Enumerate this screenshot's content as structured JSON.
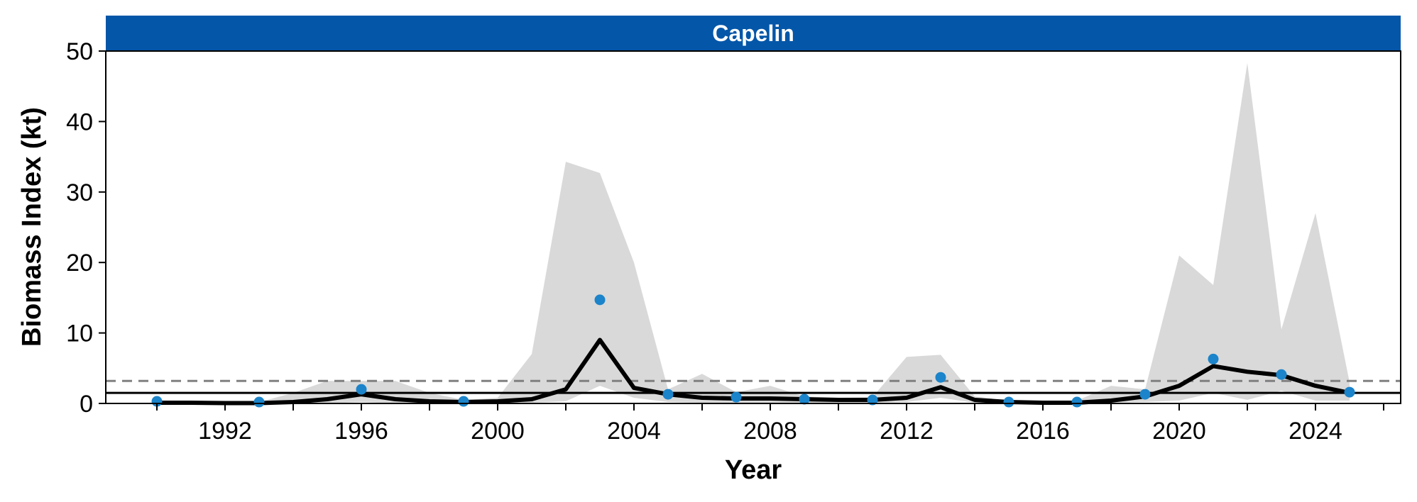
{
  "chart_data": {
    "type": "line",
    "title": "Capelin",
    "xlabel": "Year",
    "ylabel": "Biomass Index (kt)",
    "xlim": [
      1988.5,
      2026.5
    ],
    "ylim": [
      0,
      50
    ],
    "x_ticks": [
      1992,
      1996,
      2000,
      2004,
      2008,
      2012,
      2016,
      2020,
      2024
    ],
    "x_tick_labels": [
      "1992",
      "1996",
      "2000",
      "2004",
      "2008",
      "2012",
      "2016",
      "2020",
      "2024"
    ],
    "x_minor_ticks": [
      1990,
      1994,
      1998,
      2002,
      2006,
      2010,
      2014,
      2018,
      2022,
      2026
    ],
    "y_ticks": [
      0,
      10,
      20,
      30,
      40,
      50
    ],
    "y_tick_labels": [
      "0",
      "10",
      "20",
      "30",
      "40",
      "50"
    ],
    "grid": false,
    "colors": {
      "strip": "#0456A8",
      "points": "#1B84CA",
      "ribbon": "#D9D9D9",
      "line": "#000000",
      "dashed_reference": "#808080",
      "solid_reference": "#000000"
    },
    "reference_lines": {
      "dashed": 3.2,
      "solid": 1.5
    },
    "series": [
      {
        "kind": "ribbon",
        "x": [
          1990,
          1991,
          1992,
          1993,
          1994,
          1995,
          1996,
          1997,
          1998,
          1999,
          2000,
          2001,
          2002,
          2003,
          2004,
          2005,
          2006,
          2007,
          2008,
          2009,
          2010,
          2011,
          2012,
          2013,
          2014,
          2015,
          2016,
          2017,
          2018,
          2019,
          2020,
          2021,
          2022,
          2023,
          2024,
          2025
        ],
        "lower": [
          0,
          0,
          0,
          0,
          0,
          0,
          0.2,
          0,
          0,
          0,
          0,
          0.1,
          0.3,
          2.5,
          0.8,
          0.2,
          0.1,
          0.1,
          0.1,
          0.1,
          0.1,
          0.1,
          0.2,
          0.8,
          0.1,
          0,
          0,
          0,
          0.1,
          0.2,
          0.4,
          1.5,
          0.5,
          1.8,
          0.4,
          0.4
        ],
        "upper": [
          0.3,
          0.3,
          0.2,
          0.2,
          1.5,
          3.2,
          3.2,
          3.2,
          1.5,
          0.5,
          0.8,
          7,
          34.3,
          32.7,
          20,
          2.0,
          4.2,
          1.6,
          2.5,
          1.0,
          0.8,
          0.9,
          6.6,
          6.9,
          1.0,
          0.4,
          0.3,
          0.4,
          2.5,
          2.0,
          21,
          16.8,
          48.3,
          10.5,
          27,
          3.0
        ]
      },
      {
        "kind": "line",
        "x": [
          1990,
          1991,
          1992,
          1993,
          1994,
          1995,
          1996,
          1997,
          1998,
          1999,
          2000,
          2001,
          2002,
          2003,
          2004,
          2005,
          2006,
          2007,
          2008,
          2009,
          2010,
          2011,
          2012,
          2013,
          2014,
          2015,
          2016,
          2017,
          2018,
          2019,
          2020,
          2021,
          2022,
          2023,
          2024,
          2025
        ],
        "y": [
          0.1,
          0.1,
          0.05,
          0.05,
          0.2,
          0.6,
          1.3,
          0.6,
          0.3,
          0.2,
          0.3,
          0.6,
          2.0,
          9.0,
          2.2,
          1.3,
          0.8,
          0.7,
          0.7,
          0.6,
          0.5,
          0.5,
          0.8,
          2.3,
          0.5,
          0.2,
          0.1,
          0.1,
          0.4,
          1.0,
          2.5,
          5.3,
          4.5,
          4.0,
          2.5,
          1.5
        ]
      },
      {
        "kind": "points",
        "x": [
          1990,
          1993,
          1996,
          1999,
          2003,
          2005,
          2007,
          2009,
          2011,
          2013,
          2015,
          2017,
          2019,
          2021,
          2023,
          2025
        ],
        "y": [
          0.3,
          0.2,
          2.0,
          0.3,
          14.7,
          1.3,
          0.9,
          0.6,
          0.5,
          3.7,
          0.2,
          0.2,
          1.3,
          6.3,
          4.1,
          1.6
        ]
      }
    ]
  }
}
